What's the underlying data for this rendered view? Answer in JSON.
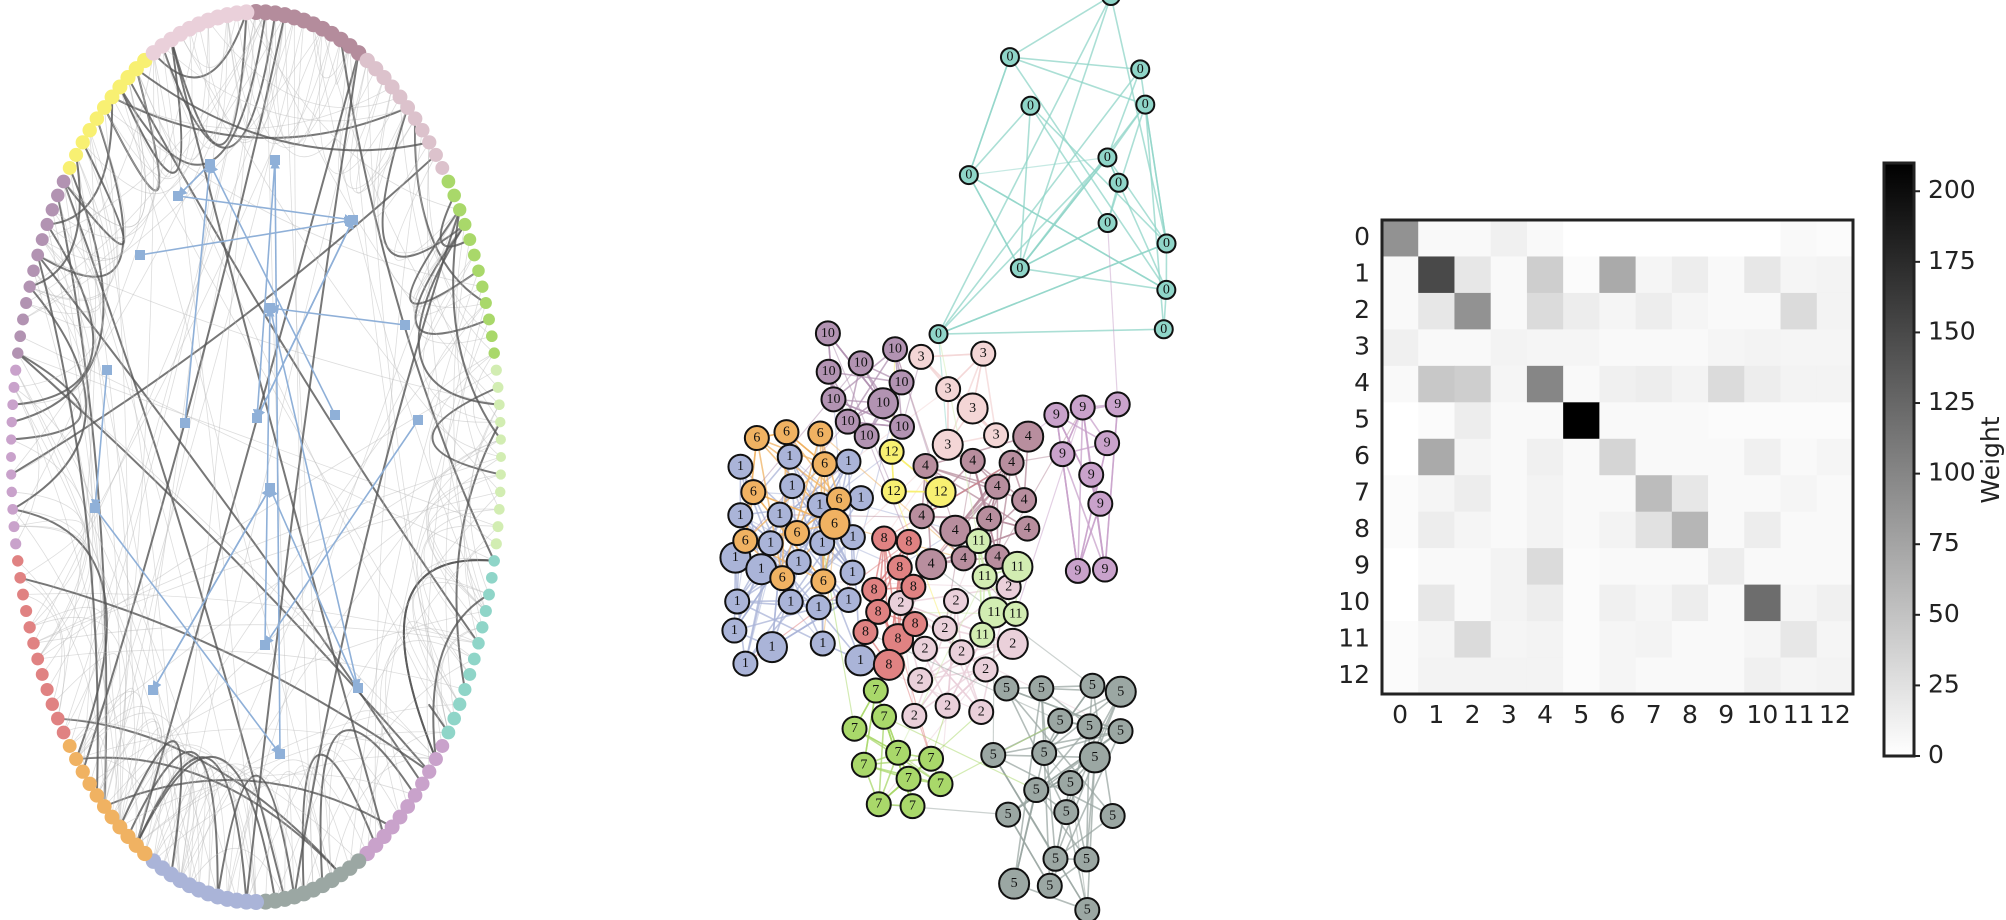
{
  "chart_data": {
    "type": "heatmap",
    "x_categories": [
      "0",
      "1",
      "2",
      "3",
      "4",
      "5",
      "6",
      "7",
      "8",
      "9",
      "10",
      "11",
      "12"
    ],
    "y_categories": [
      "0",
      "1",
      "2",
      "3",
      "4",
      "5",
      "6",
      "7",
      "8",
      "9",
      "10",
      "11",
      "12"
    ],
    "values": [
      [
        90,
        5,
        5,
        12,
        5,
        0,
        0,
        0,
        0,
        0,
        0,
        5,
        3
      ],
      [
        5,
        150,
        20,
        5,
        40,
        3,
        70,
        8,
        15,
        5,
        20,
        8,
        10
      ],
      [
        5,
        20,
        90,
        5,
        30,
        15,
        8,
        15,
        8,
        5,
        5,
        30,
        10
      ],
      [
        12,
        5,
        5,
        10,
        8,
        8,
        5,
        5,
        5,
        8,
        10,
        8,
        8
      ],
      [
        5,
        45,
        40,
        8,
        100,
        5,
        12,
        15,
        10,
        30,
        15,
        10,
        10
      ],
      [
        0,
        3,
        15,
        5,
        5,
        210,
        5,
        5,
        5,
        3,
        3,
        3,
        3
      ],
      [
        0,
        70,
        8,
        5,
        12,
        5,
        35,
        5,
        5,
        5,
        12,
        5,
        8
      ],
      [
        3,
        8,
        15,
        5,
        10,
        5,
        5,
        55,
        20,
        5,
        5,
        8,
        5
      ],
      [
        3,
        15,
        8,
        5,
        10,
        5,
        10,
        25,
        60,
        5,
        15,
        5,
        5
      ],
      [
        0,
        5,
        5,
        10,
        30,
        3,
        5,
        5,
        5,
        15,
        5,
        5,
        5
      ],
      [
        0,
        20,
        5,
        10,
        15,
        3,
        12,
        8,
        15,
        5,
        120,
        8,
        12
      ],
      [
        3,
        8,
        30,
        8,
        10,
        3,
        8,
        10,
        5,
        5,
        8,
        20,
        8
      ],
      [
        3,
        10,
        10,
        10,
        10,
        3,
        8,
        5,
        5,
        5,
        12,
        8,
        10
      ]
    ],
    "colorbar_label": "Weight",
    "clim": [
      0,
      210
    ],
    "cticks": [
      0,
      25,
      50,
      75,
      100,
      125,
      150,
      175,
      200
    ]
  },
  "network": {
    "colors": [
      "#8fd5c8",
      "#aab4d8",
      "#ead0da",
      "#f4d6d6",
      "#b88e9e",
      "#9ba7a3",
      "#f0b262",
      "#a9d86a",
      "#e08282",
      "#c9a2cb",
      "#b293b2",
      "#d2edb2",
      "#f8f072"
    ],
    "nodes": [
      "0",
      "0",
      "0",
      "0",
      "0",
      "0",
      "0",
      "0",
      "0",
      "0",
      "0",
      "0",
      "0",
      "0",
      "1",
      "1",
      "1",
      "1",
      "1",
      "1",
      "1",
      "1",
      "1",
      "1",
      "1",
      "1",
      "1",
      "1",
      "1",
      "1",
      "1",
      "1",
      "1",
      "1",
      "1",
      "1",
      "1",
      "1",
      "2",
      "2",
      "2",
      "2",
      "2",
      "2",
      "2",
      "2",
      "2",
      "2",
      "2",
      "2",
      "3",
      "3",
      "3",
      "3",
      "3",
      "3",
      "4",
      "4",
      "4",
      "4",
      "4",
      "4",
      "4",
      "4",
      "4",
      "4",
      "4",
      "4",
      "4",
      "5",
      "5",
      "5",
      "5",
      "5",
      "5",
      "5",
      "5",
      "5",
      "5",
      "5",
      "5",
      "5",
      "5",
      "5",
      "5",
      "5",
      "5",
      "5",
      "5",
      "6",
      "6",
      "6",
      "6",
      "6",
      "6",
      "6",
      "6",
      "6",
      "6",
      "6",
      "7",
      "7",
      "7",
      "7",
      "7",
      "7",
      "7",
      "7",
      "7",
      "7",
      "8",
      "8",
      "8",
      "8",
      "8",
      "8",
      "8",
      "8",
      "8",
      "8",
      "9",
      "9",
      "9",
      "9",
      "9",
      "9",
      "9",
      "9",
      "9",
      "10",
      "10",
      "10",
      "10",
      "10",
      "10",
      "10",
      "10",
      "10",
      "10",
      "11",
      "11",
      "11",
      "11",
      "11",
      "11",
      "12",
      "12",
      "12"
    ]
  }
}
